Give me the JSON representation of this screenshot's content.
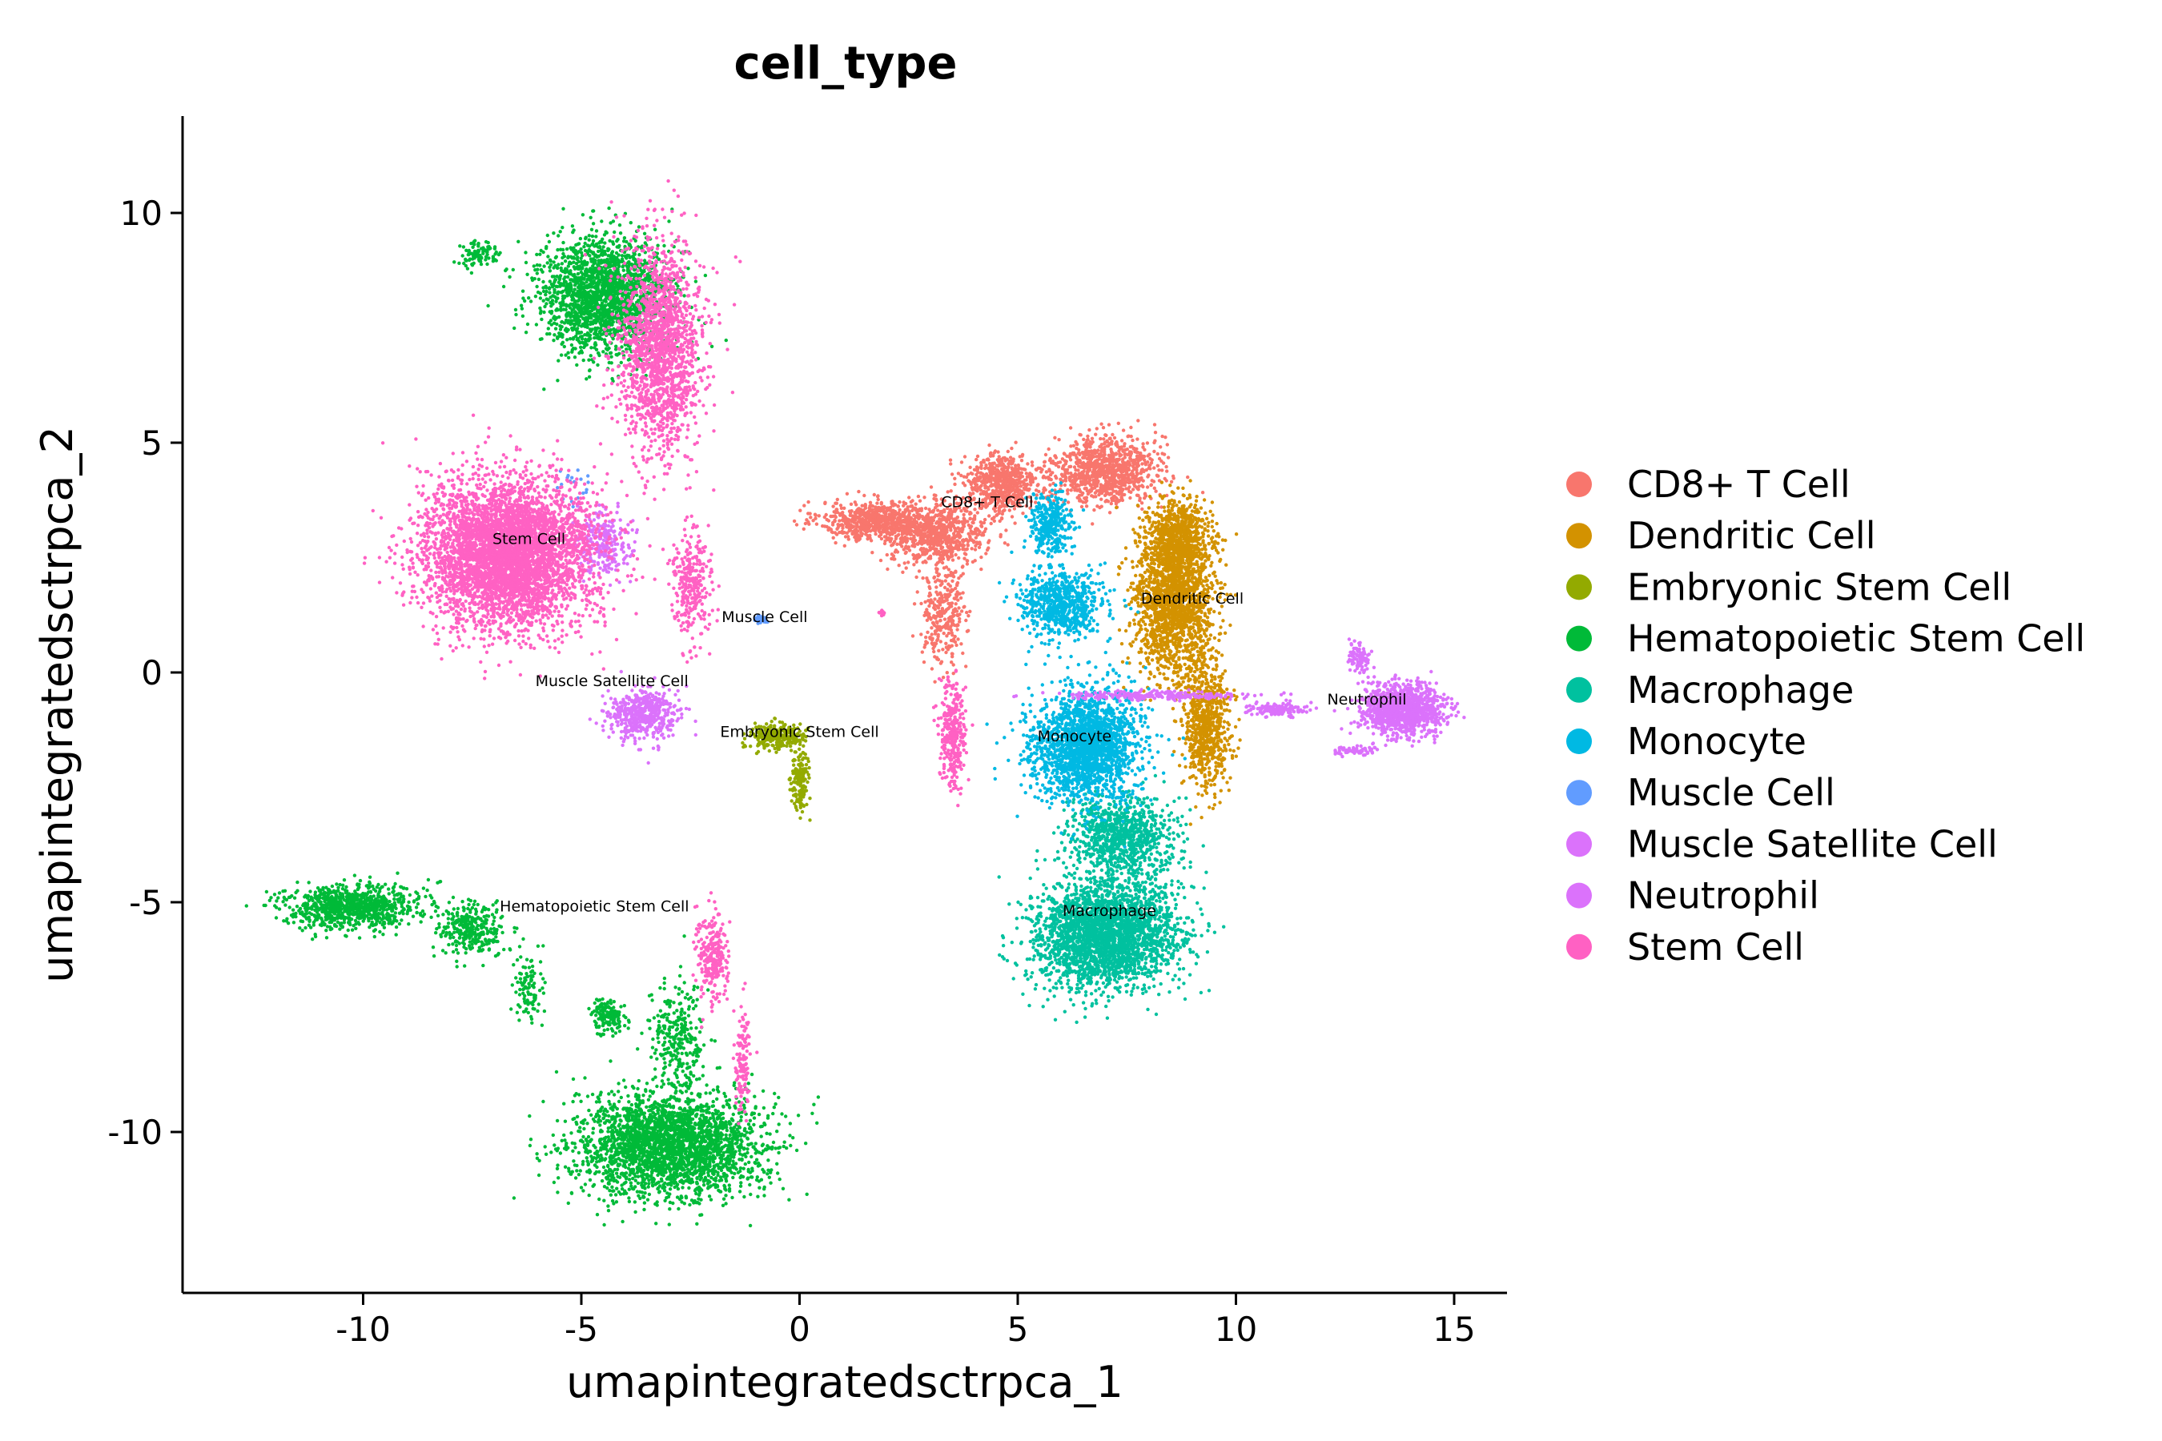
{
  "chart_data": {
    "type": "scatter",
    "title": "cell_type",
    "xlabel": "umapintegratedsctrpca_1",
    "ylabel": "umapintegratedsctrpca_2",
    "xlim": [
      -14,
      16.5
    ],
    "ylim": [
      -13.5,
      12.2
    ],
    "xticks": [
      -10,
      -5,
      0,
      5,
      10,
      15
    ],
    "xtick_labels": [
      "-10",
      "-5",
      "0",
      "5",
      "10",
      "15"
    ],
    "yticks": [
      -10,
      -5,
      0,
      5,
      10
    ],
    "ytick_labels": [
      "-10",
      "-5",
      "0",
      "5",
      "10"
    ],
    "grid": false,
    "legend_position": "right",
    "series": [
      {
        "name": "CD8+ T Cell",
        "color": "#F8766D",
        "label_at": [
          4.3,
          3.6
        ],
        "clusters": [
          [
            1.8,
            3.3,
            1.1,
            0.35,
            700
          ],
          [
            3.2,
            3.0,
            0.9,
            0.55,
            700
          ],
          [
            4.6,
            4.1,
            0.7,
            0.55,
            600
          ],
          [
            7.0,
            4.4,
            1.0,
            0.6,
            1000
          ],
          [
            3.3,
            1.3,
            0.4,
            0.9,
            300
          ]
        ]
      },
      {
        "name": "Dendritic Cell",
        "color": "#D39200",
        "label_at": [
          9.0,
          1.5
        ],
        "clusters": [
          [
            8.6,
            1.6,
            0.75,
            1.35,
            1900
          ],
          [
            9.3,
            -1.2,
            0.45,
            1.1,
            700
          ],
          [
            8.7,
            3.0,
            0.6,
            0.6,
            500
          ]
        ]
      },
      {
        "name": "Embryonic Stem Cell",
        "color": "#93AA00",
        "label_at": [
          0.0,
          -1.4
        ],
        "clusters": [
          [
            -0.5,
            -1.4,
            0.55,
            0.22,
            250
          ],
          [
            0.0,
            -2.3,
            0.18,
            0.55,
            150
          ]
        ]
      },
      {
        "name": "Hematopoietic Stem Cell",
        "color": "#00BA38",
        "label_at": [
          -4.7,
          -5.2
        ],
        "clusters": [
          [
            -4.5,
            8.2,
            1.25,
            1.05,
            2000
          ],
          [
            -7.4,
            9.1,
            0.35,
            0.25,
            100
          ],
          [
            -10.3,
            -5.1,
            1.3,
            0.4,
            900
          ],
          [
            -7.5,
            -5.6,
            0.6,
            0.5,
            300
          ],
          [
            -6.2,
            -6.8,
            0.3,
            0.6,
            100
          ],
          [
            -3.0,
            -10.3,
            1.75,
            0.9,
            2700
          ],
          [
            -4.4,
            -7.5,
            0.35,
            0.3,
            150
          ],
          [
            -2.8,
            -8.0,
            0.5,
            1.0,
            300
          ]
        ]
      },
      {
        "name": "Macrophage",
        "color": "#00C19F",
        "label_at": [
          7.1,
          -5.3
        ],
        "clusters": [
          [
            7.0,
            -5.7,
            1.35,
            1.0,
            2700
          ],
          [
            7.4,
            -3.6,
            1.0,
            0.7,
            900
          ]
        ]
      },
      {
        "name": "Monocyte",
        "color": "#00B9E3",
        "label_at": [
          6.3,
          -1.5
        ],
        "clusters": [
          [
            6.6,
            -1.6,
            1.0,
            1.0,
            2000
          ],
          [
            6.0,
            1.5,
            0.8,
            0.6,
            700
          ],
          [
            5.8,
            3.2,
            0.4,
            0.55,
            300
          ]
        ]
      },
      {
        "name": "Muscle Cell",
        "color": "#619CFF",
        "label_at": [
          -0.8,
          1.1
        ],
        "clusters": [
          [
            -0.9,
            1.15,
            0.12,
            0.07,
            40
          ],
          [
            -5.2,
            4.0,
            0.3,
            0.3,
            20
          ]
        ]
      },
      {
        "name": "Muscle Satellite Cell",
        "color": "#DB72FB",
        "label_at": [
          -4.3,
          -0.3
        ],
        "clusters": [
          [
            -3.6,
            -0.9,
            0.65,
            0.45,
            500
          ],
          [
            -4.5,
            2.8,
            0.5,
            0.6,
            250
          ]
        ]
      },
      {
        "name": "Neutrophil",
        "color": "#DB72FB",
        "label_at": [
          13.0,
          -0.7
        ],
        "clusters": [
          [
            13.8,
            -0.8,
            0.75,
            0.45,
            1200
          ],
          [
            12.8,
            0.3,
            0.2,
            0.3,
            100
          ],
          [
            11.0,
            -0.8,
            0.6,
            0.12,
            150
          ],
          [
            8.2,
            -0.5,
            1.8,
            0.08,
            250
          ],
          [
            12.7,
            -1.7,
            0.4,
            0.1,
            60
          ]
        ]
      },
      {
        "name": "Stem Cell",
        "color": "#FF61C3",
        "label_at": [
          -6.2,
          2.8
        ],
        "clusters": [
          [
            -6.7,
            2.6,
            1.6,
            1.35,
            4500
          ],
          [
            -3.2,
            7.0,
            0.8,
            1.9,
            1700
          ],
          [
            -2.5,
            1.9,
            0.4,
            1.0,
            300
          ],
          [
            -2.0,
            -6.2,
            0.3,
            0.75,
            250
          ],
          [
            -1.3,
            -8.5,
            0.15,
            0.9,
            120
          ],
          [
            3.5,
            -1.3,
            0.25,
            1.0,
            300
          ],
          [
            1.9,
            1.3,
            0.05,
            0.05,
            20
          ]
        ]
      }
    ]
  }
}
